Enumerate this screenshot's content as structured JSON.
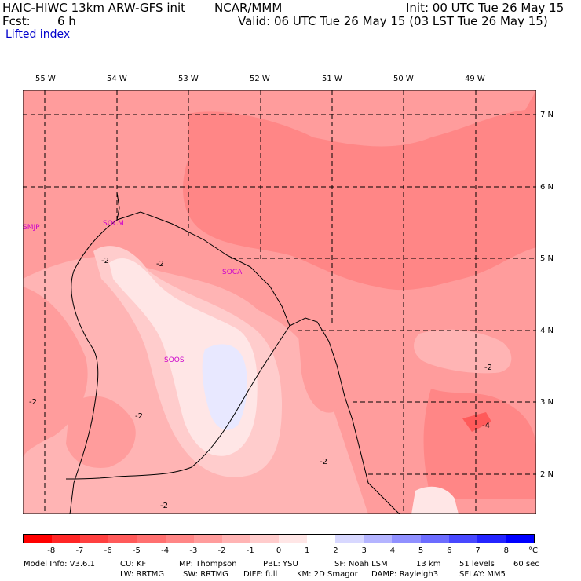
{
  "header": {
    "line1_left": "HAIC-HIWC 13km ARW-GFS init",
    "line1_mid": "NCAR/MMM",
    "line1_right": "Init: 00 UTC Tue 26 May 15",
    "fcst_label": "Fcst:",
    "fcst_value": "6 h",
    "valid": "Valid: 06 UTC Tue 26 May 15 (03 LST Tue 26 May 15)",
    "field": "Lifted index"
  },
  "longitudes": [
    "55 W",
    "54 W",
    "53 W",
    "52 W",
    "51 W",
    "50 W",
    "49 W"
  ],
  "latitudes": [
    "7 N",
    "6 N",
    "5 N",
    "4 N",
    "3 N",
    "2 N"
  ],
  "stations": [
    "SMJP",
    "SOCM",
    "SOCA",
    "SOOS"
  ],
  "contour_labels": [
    "-2",
    "-2",
    "-2",
    "-2",
    "-2",
    "-2",
    "-2",
    "-4"
  ],
  "colorbar": {
    "colors": [
      "#ff0000",
      "#ff2626",
      "#ff4040",
      "#ff5a5a",
      "#ff7070",
      "#ff8686",
      "#ff9c9c",
      "#ffb4b4",
      "#ffcccc",
      "#ffe6e6",
      "#ffffff",
      "#d8d8ff",
      "#b4b4ff",
      "#9090ff",
      "#6c6cff",
      "#4848ff",
      "#2424ff",
      "#0000ff"
    ],
    "labels": [
      "-8",
      "-7",
      "-6",
      "-5",
      "-4",
      "-3",
      "-2",
      "-1",
      "0",
      "1",
      "2",
      "3",
      "4",
      "5",
      "6",
      "7",
      "8"
    ],
    "unit": "°C"
  },
  "footer": {
    "line1": [
      "Model Info: V3.6.1",
      "CU: KF",
      "MP: Thompson",
      "PBL: YSU",
      "SF: Noah LSM",
      "13 km",
      "51 levels",
      "60 sec"
    ],
    "line2": [
      "LW: RRTMG",
      "SW: RRTMG",
      "DIFF: full",
      "KM: 2D Smagor",
      "DAMP: Rayleigh3",
      "SFLAY: MM5"
    ]
  }
}
